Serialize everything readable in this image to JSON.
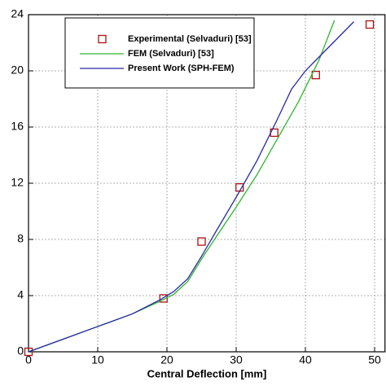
{
  "chart_data": {
    "type": "line",
    "x_label": "Central Deflection [mm]",
    "xlim": [
      0,
      51.5
    ],
    "ylim": [
      0,
      24
    ],
    "xticks": [
      0,
      10,
      20,
      30,
      40,
      50
    ],
    "yticks": [
      0,
      4,
      8,
      12,
      16,
      20,
      24
    ],
    "grid": true,
    "series": [
      {
        "name": "Experimental (Selvaduri) [53]",
        "color": "#b01010",
        "marker": "square",
        "x": [
          0,
          19.5,
          25,
          30.5,
          35.5,
          41.5,
          49.3
        ],
        "values": [
          0,
          3.8,
          7.85,
          11.7,
          15.6,
          19.7,
          23.3
        ]
      },
      {
        "name": "FEM (Selvaduri) [53]",
        "color": "#2fb52f",
        "marker": "none",
        "x": [
          0,
          5,
          10,
          15,
          19,
          21,
          23,
          25,
          27,
          30,
          33,
          36,
          39,
          42,
          44.2
        ],
        "values": [
          0,
          0.9,
          1.8,
          2.7,
          3.6,
          4.1,
          5.0,
          6.6,
          8.1,
          10.3,
          12.6,
          15.2,
          17.8,
          20.8,
          23.6
        ]
      },
      {
        "name": "Present Work (SPH-FEM)",
        "color": "#2828a8",
        "marker": "none",
        "x": [
          0,
          5,
          10,
          15,
          19,
          21,
          23,
          25,
          27,
          30,
          33,
          36,
          38,
          40,
          42,
          44,
          47
        ],
        "values": [
          0,
          0.9,
          1.8,
          2.7,
          3.7,
          4.3,
          5.2,
          6.8,
          8.5,
          11.0,
          13.6,
          16.6,
          18.7,
          20.0,
          21.0,
          22.0,
          23.5
        ]
      }
    ]
  }
}
